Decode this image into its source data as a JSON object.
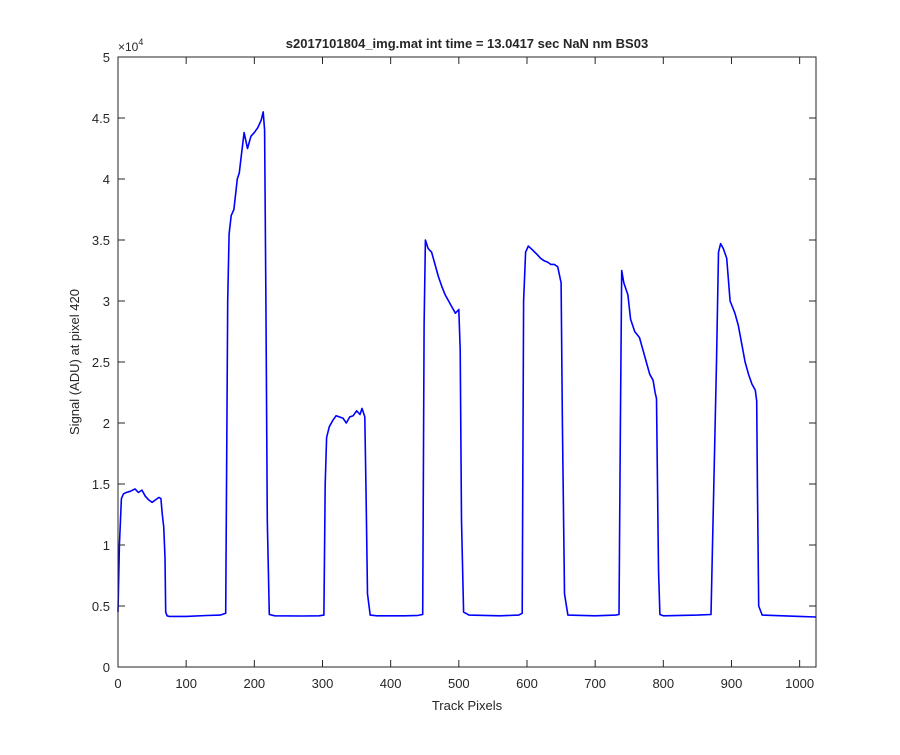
{
  "chart_data": {
    "type": "line",
    "title": "s2017101804_img.mat int time = 13.0417 sec  NaN nm BS03",
    "xlabel": "Track Pixels",
    "ylabel": "Signal (ADU) at pixel 420",
    "xlim": [
      0,
      1024
    ],
    "ylim": [
      0,
      50000
    ],
    "y_exponent_label": "×10",
    "y_exponent_power": "4",
    "xticks": [
      0,
      100,
      200,
      300,
      400,
      500,
      600,
      700,
      800,
      900,
      1000
    ],
    "xtick_labels": [
      "0",
      "100",
      "200",
      "300",
      "400",
      "500",
      "600",
      "700",
      "800",
      "900",
      "1000"
    ],
    "yticks": [
      0,
      5000,
      10000,
      15000,
      20000,
      25000,
      30000,
      35000,
      40000,
      45000,
      50000
    ],
    "ytick_labels": [
      "0",
      "0.5",
      "1",
      "1.5",
      "2",
      "2.5",
      "3",
      "3.5",
      "4",
      "4.5",
      "5"
    ],
    "grid": false,
    "line_color": "#0000ff",
    "series": [
      {
        "name": "",
        "x": [
          0,
          2,
          5,
          8,
          12,
          18,
          25,
          30,
          35,
          40,
          45,
          50,
          55,
          60,
          63,
          65,
          67,
          69,
          70,
          72,
          75,
          100,
          130,
          150,
          158,
          161,
          163,
          166,
          170,
          175,
          178,
          180,
          185,
          190,
          195,
          200,
          205,
          210,
          213,
          215,
          217,
          219,
          222,
          230,
          270,
          295,
          302,
          304,
          306,
          310,
          315,
          320,
          330,
          335,
          340,
          345,
          350,
          355,
          358,
          362,
          364,
          366,
          370,
          380,
          420,
          440,
          447,
          449,
          451,
          455,
          460,
          465,
          470,
          475,
          480,
          485,
          490,
          495,
          500,
          502,
          504,
          507,
          515,
          560,
          588,
          593,
          595,
          598,
          602,
          608,
          615,
          620,
          625,
          630,
          635,
          640,
          645,
          650,
          652,
          655,
          660,
          700,
          730,
          735,
          737,
          739,
          742,
          748,
          752,
          758,
          765,
          770,
          775,
          780,
          785,
          788,
          790,
          793,
          795,
          800,
          850,
          870,
          878,
          881,
          884,
          888,
          893,
          898,
          905,
          910,
          915,
          920,
          925,
          930,
          935,
          937,
          938,
          940,
          945,
          1000,
          1024
        ],
        "y": [
          4500,
          10000,
          13800,
          14200,
          14300,
          14400,
          14600,
          14300,
          14500,
          14000,
          13700,
          13500,
          13700,
          13900,
          13800,
          12500,
          11500,
          9000,
          4500,
          4200,
          4150,
          4150,
          4220,
          4250,
          4400,
          30000,
          35500,
          37000,
          37500,
          40000,
          40500,
          41500,
          43800,
          42500,
          43500,
          43800,
          44200,
          44800,
          45500,
          44000,
          30000,
          12000,
          4300,
          4200,
          4180,
          4200,
          4250,
          15000,
          18800,
          19700,
          20200,
          20600,
          20400,
          20000,
          20500,
          20600,
          21000,
          20700,
          21200,
          20500,
          14000,
          6000,
          4250,
          4200,
          4200,
          4230,
          4300,
          28000,
          35000,
          34300,
          34000,
          33000,
          32000,
          31200,
          30500,
          30000,
          29500,
          29000,
          29300,
          26000,
          12000,
          4500,
          4250,
          4200,
          4250,
          4400,
          30000,
          34000,
          34500,
          34200,
          33800,
          33500,
          33300,
          33200,
          33000,
          33000,
          32800,
          31500,
          20000,
          6000,
          4250,
          4200,
          4250,
          4300,
          20000,
          32500,
          31500,
          30500,
          28500,
          27500,
          27000,
          26000,
          25000,
          24000,
          23500,
          22500,
          22000,
          8000,
          4300,
          4200,
          4250,
          4300,
          25000,
          34000,
          34700,
          34300,
          33500,
          30000,
          29000,
          28000,
          26500,
          25000,
          24000,
          23200,
          22700,
          21800,
          15000,
          5000,
          4250,
          4150,
          4100
        ]
      }
    ]
  }
}
